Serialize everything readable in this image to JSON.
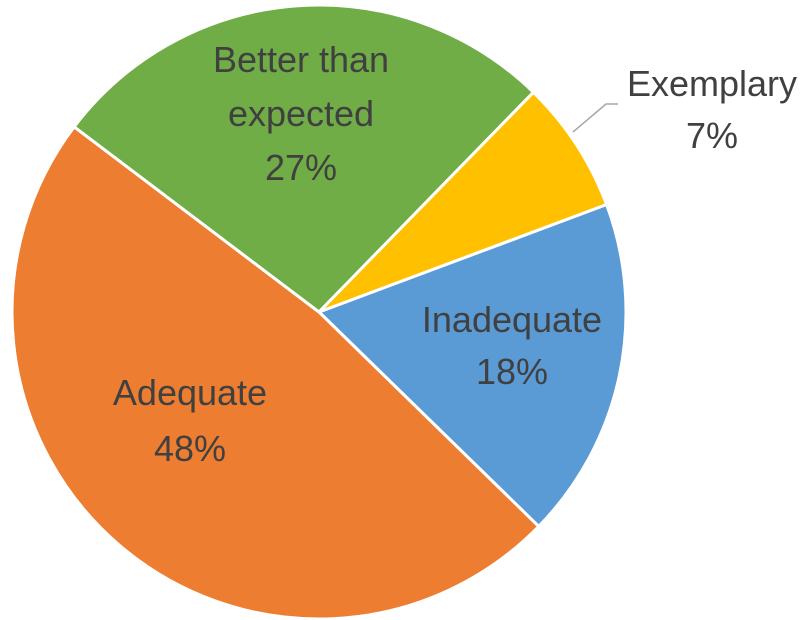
{
  "chart_data": {
    "type": "pie",
    "title": "",
    "legend": "none",
    "categories": [
      "Inadequate",
      "Adequate",
      "Better than expected",
      "Exemplary"
    ],
    "values": [
      18,
      48,
      27,
      7
    ],
    "value_labels": [
      "18%",
      "48%",
      "27%",
      "7%"
    ],
    "label_lines": [
      [
        "Inadequate",
        "18%"
      ],
      [
        "Adequate",
        "48%"
      ],
      [
        "Better than",
        "expected",
        "27%"
      ],
      [
        "Exemplary",
        "7%"
      ]
    ],
    "colors": [
      "#5b9bd5",
      "#ed7d31",
      "#70ad47",
      "#ffc000"
    ],
    "start_slice_color_note": "slices drawn clockwise"
  }
}
